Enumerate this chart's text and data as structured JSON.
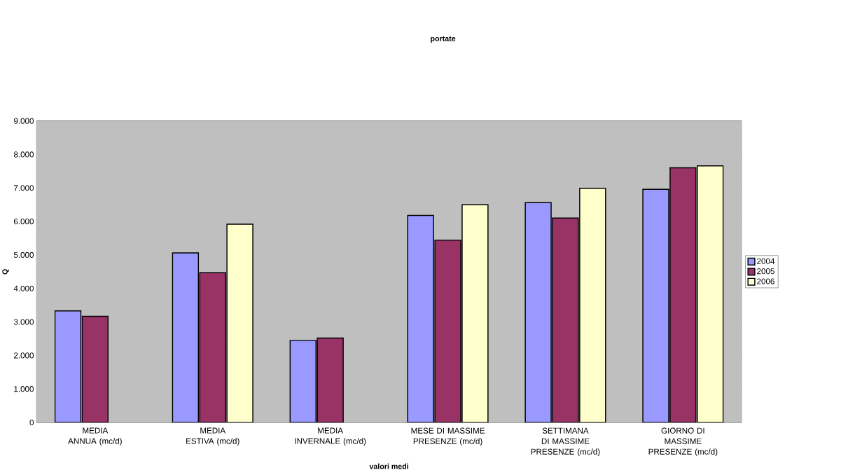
{
  "chart_data": {
    "type": "bar",
    "title": "portate",
    "xlabel": "valori medi",
    "ylabel": "Q",
    "categories": [
      "MEDIA ANNUA (mc/d)",
      "MEDIA ESTIVA (mc/d)",
      "MEDIA INVERNALE (mc/d)",
      "MESE DI MASSIME PRESENZE (mc/d)",
      "SETTIMANA DI MASSIME PRESENZE (mc/d)",
      "GIORNO DI MASSIME PRESENZE (mc/d)"
    ],
    "series": [
      {
        "name": "2004",
        "color": "#9999ff",
        "values": [
          3330,
          5060,
          2450,
          6180,
          6560,
          6960
        ]
      },
      {
        "name": "2005",
        "color": "#993366",
        "values": [
          3170,
          4470,
          2520,
          5440,
          6100,
          7600
        ]
      },
      {
        "name": "2006",
        "color": "#ffffcc",
        "values": [
          null,
          5920,
          null,
          6500,
          6990,
          7660
        ]
      }
    ],
    "ylim": [
      0,
      9000
    ],
    "yticks": [
      0,
      {
        "value": 1000,
        "label": "1.000"
      },
      {
        "value": 2000,
        "label": "2.000"
      },
      {
        "value": 3000,
        "label": "3.000"
      },
      {
        "value": 4000,
        "label": "4.000"
      },
      {
        "value": 5000,
        "label": "5.000"
      },
      {
        "value": 6000,
        "label": "6.000"
      },
      {
        "value": 7000,
        "label": "7.000"
      },
      {
        "value": 8000,
        "label": "8.000"
      },
      {
        "value": 9000,
        "label": "9.000"
      }
    ],
    "grid": "y",
    "legend": "right"
  }
}
